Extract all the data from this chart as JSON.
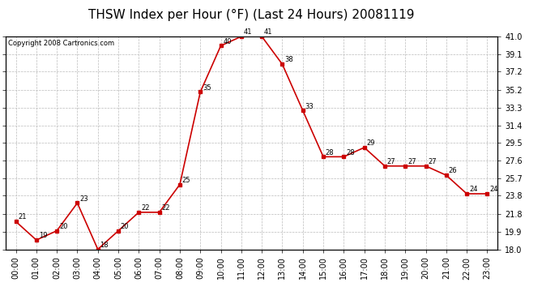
{
  "title": "THSW Index per Hour (°F) (Last 24 Hours) 20081119",
  "copyright_text": "Copyright 2008 Cartronics.com",
  "hours": [
    0,
    1,
    2,
    3,
    4,
    5,
    6,
    7,
    8,
    9,
    10,
    11,
    12,
    13,
    14,
    15,
    16,
    17,
    18,
    19,
    20,
    21,
    22,
    23
  ],
  "x_labels": [
    "00:00",
    "01:00",
    "02:00",
    "03:00",
    "04:00",
    "05:00",
    "06:00",
    "07:00",
    "08:00",
    "09:00",
    "10:00",
    "11:00",
    "12:00",
    "13:00",
    "14:00",
    "15:00",
    "16:00",
    "17:00",
    "18:00",
    "19:00",
    "20:00",
    "21:00",
    "22:00",
    "23:00"
  ],
  "values": [
    21,
    19,
    20,
    23,
    18,
    20,
    22,
    22,
    25,
    35,
    40,
    41,
    41,
    38,
    33,
    28,
    28,
    29,
    27,
    27,
    27,
    26,
    24,
    24
  ],
  "y_ticks": [
    18.0,
    19.9,
    21.8,
    23.8,
    25.7,
    27.6,
    29.5,
    31.4,
    33.3,
    35.2,
    37.2,
    39.1,
    41.0
  ],
  "ylim": [
    18.0,
    41.0
  ],
  "xlim": [
    -0.5,
    23.5
  ],
  "line_color": "#cc0000",
  "marker_color": "#cc0000",
  "grid_color": "#bbbbbb",
  "bg_color": "#ffffff",
  "title_fontsize": 11,
  "tick_fontsize": 7,
  "annot_fontsize": 6,
  "copyright_fontsize": 6
}
